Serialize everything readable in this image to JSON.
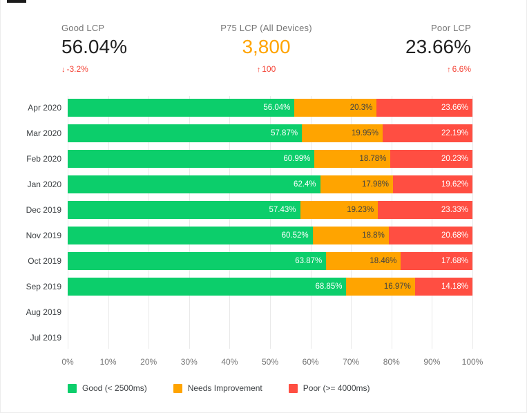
{
  "scorecards": [
    {
      "label": "Good LCP",
      "value": "56.04%",
      "delta_arrow": "↓",
      "delta_value": "-3.2%"
    },
    {
      "label": "P75 LCP (All Devices)",
      "value": "3,800",
      "delta_arrow": "↑",
      "delta_value": "100"
    },
    {
      "label": "Poor LCP",
      "value": "23.66%",
      "delta_arrow": "↑",
      "delta_value": "6.6%"
    }
  ],
  "colors": {
    "good": "#0cce6b",
    "needs_improvement": "#ffa400",
    "poor": "#ff4e42",
    "delta_text": "#f44336",
    "p75_value": "#ffa400",
    "gridline": "#e9e9e9"
  },
  "chart_data": {
    "type": "bar",
    "orientation": "horizontal",
    "stacked": true,
    "title": "",
    "xlabel": "",
    "ylabel": "",
    "xlim": [
      0,
      100
    ],
    "grid": true,
    "legend_position": "bottom",
    "categories": [
      "Apr 2020",
      "Mar 2020",
      "Feb 2020",
      "Jan 2020",
      "Dec 2019",
      "Nov 2019",
      "Oct 2019",
      "Sep 2019",
      "Aug 2019",
      "Jul 2019"
    ],
    "series": [
      {
        "name": "Good (< 2500ms)",
        "color": "#0cce6b",
        "label_color": "#ffffff",
        "values": [
          56.04,
          57.87,
          60.99,
          62.4,
          57.43,
          60.52,
          63.87,
          68.85,
          null,
          null
        ]
      },
      {
        "name": "Needs Improvement",
        "color": "#ffa400",
        "label_color": "#424242",
        "values": [
          20.3,
          19.95,
          18.78,
          17.98,
          19.23,
          18.8,
          18.46,
          16.97,
          null,
          null
        ]
      },
      {
        "name": "Poor (>= 4000ms)",
        "color": "#ff4e42",
        "label_color": "#ffffff",
        "values": [
          23.66,
          22.19,
          20.23,
          19.62,
          23.33,
          20.68,
          17.68,
          14.18,
          null,
          null
        ]
      }
    ],
    "x_ticks": [
      "0%",
      "10%",
      "20%",
      "30%",
      "40%",
      "50%",
      "60%",
      "70%",
      "80%",
      "90%",
      "100%"
    ]
  }
}
